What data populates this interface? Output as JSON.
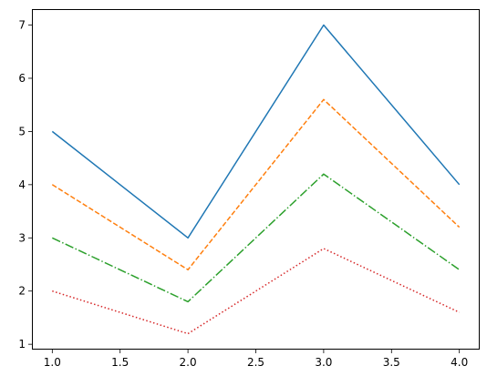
{
  "chart_data": {
    "type": "line",
    "title": "",
    "xlabel": "",
    "ylabel": "",
    "x": [
      1.0,
      2.0,
      3.0,
      4.0
    ],
    "xlim": [
      0.85,
      4.15
    ],
    "ylim": [
      0.9,
      7.3
    ],
    "xticks": [
      "1.0",
      "1.5",
      "2.0",
      "2.5",
      "3.0",
      "3.5",
      "4.0"
    ],
    "yticks": [
      "1",
      "2",
      "3",
      "4",
      "5",
      "6",
      "7"
    ],
    "grid": false,
    "legend": "none",
    "series": [
      {
        "values": [
          5,
          3,
          7,
          4
        ],
        "color": "#1f77b4",
        "linestyle": "solid"
      },
      {
        "values": [
          4,
          2.4,
          5.6,
          3.2
        ],
        "color": "#ff7f0e",
        "linestyle": "dashed"
      },
      {
        "values": [
          3,
          1.8,
          4.2,
          2.4
        ],
        "color": "#2ca02c",
        "linestyle": "dashdot"
      },
      {
        "values": [
          2,
          1.2,
          2.8,
          1.6
        ],
        "color": "#d62728",
        "linestyle": "dotted"
      }
    ]
  }
}
